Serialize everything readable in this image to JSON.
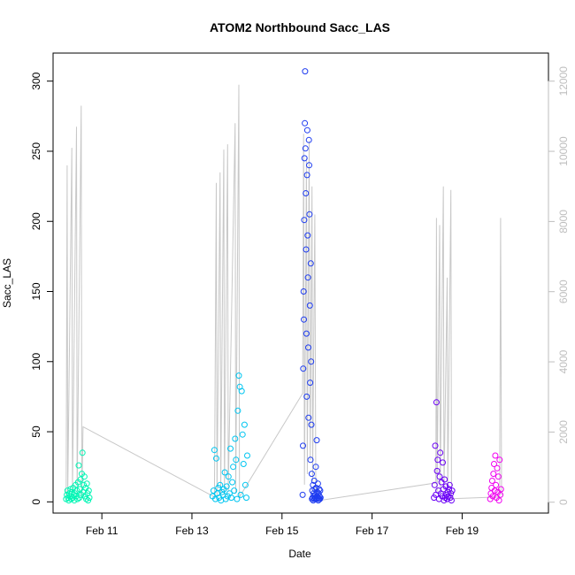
{
  "chart_data": {
    "type": "scatter",
    "title": "ATOM2 Northbound Sacc_LAS",
    "xlabel": "Date",
    "ylabel": "Sacc_LAS",
    "x_axis": {
      "type": "date",
      "range": [
        "2010-02-09T22:00",
        "2010-02-20T22:00"
      ],
      "ticks": [
        {
          "value": "2010-02-11",
          "label": "Feb 11"
        },
        {
          "value": "2010-02-13",
          "label": "Feb 13"
        },
        {
          "value": "2010-02-15",
          "label": "Feb 15"
        },
        {
          "value": "2010-02-17",
          "label": "Feb 17"
        },
        {
          "value": "2010-02-19",
          "label": "Feb 19"
        }
      ]
    },
    "y_axis": {
      "range": [
        -8,
        320
      ],
      "ticks": [
        {
          "value": 0,
          "label": "0"
        },
        {
          "value": 50,
          "label": "50"
        },
        {
          "value": 100,
          "label": "100"
        },
        {
          "value": 150,
          "label": "150"
        },
        {
          "value": 200,
          "label": "200"
        },
        {
          "value": 250,
          "label": "250"
        },
        {
          "value": 300,
          "label": "300"
        }
      ]
    },
    "y2_axis": {
      "range": [
        -310,
        12800
      ],
      "color": "#bebebe",
      "ticks": [
        {
          "value": 0,
          "label": "0"
        },
        {
          "value": 2000,
          "label": "2000"
        },
        {
          "value": 4000,
          "label": "4000"
        },
        {
          "value": 6000,
          "label": "6000"
        },
        {
          "value": 8000,
          "label": "8000"
        },
        {
          "value": 10000,
          "label": "10000"
        },
        {
          "value": 12000,
          "label": "12000"
        }
      ]
    },
    "grid": false,
    "legend": "none",
    "series": [
      {
        "color": "#00f5b4",
        "points": [
          [
            "2010-02-10T05:00",
            2
          ],
          [
            "2010-02-10T05:20",
            5
          ],
          [
            "2010-02-10T05:40",
            8
          ],
          [
            "2010-02-10T06:00",
            3
          ],
          [
            "2010-02-10T06:20",
            1
          ],
          [
            "2010-02-10T06:40",
            6
          ],
          [
            "2010-02-10T07:00",
            4
          ],
          [
            "2010-02-10T07:20",
            9
          ],
          [
            "2010-02-10T07:40",
            2
          ],
          [
            "2010-02-10T08:00",
            7
          ],
          [
            "2010-02-10T08:20",
            3
          ],
          [
            "2010-02-10T08:40",
            10
          ],
          [
            "2010-02-10T09:00",
            5
          ],
          [
            "2010-02-10T09:20",
            1
          ],
          [
            "2010-02-10T09:40",
            6
          ],
          [
            "2010-02-10T10:00",
            12
          ],
          [
            "2010-02-10T10:20",
            4
          ],
          [
            "2010-02-10T10:40",
            8
          ],
          [
            "2010-02-10T11:00",
            2
          ],
          [
            "2010-02-10T11:20",
            14
          ],
          [
            "2010-02-10T11:40",
            26
          ],
          [
            "2010-02-10T12:00",
            3
          ],
          [
            "2010-02-10T12:20",
            9
          ],
          [
            "2010-02-10T12:40",
            16
          ],
          [
            "2010-02-10T13:00",
            5
          ],
          [
            "2010-02-10T13:20",
            20
          ],
          [
            "2010-02-10T13:40",
            35
          ],
          [
            "2010-02-10T14:00",
            7
          ],
          [
            "2010-02-10T14:20",
            12
          ],
          [
            "2010-02-10T14:40",
            18
          ],
          [
            "2010-02-10T15:00",
            4
          ],
          [
            "2010-02-10T15:20",
            10
          ],
          [
            "2010-02-10T15:40",
            2
          ],
          [
            "2010-02-10T16:00",
            13
          ],
          [
            "2010-02-10T16:20",
            6
          ],
          [
            "2010-02-10T16:40",
            1
          ],
          [
            "2010-02-10T17:00",
            8
          ],
          [
            "2010-02-10T17:20",
            3
          ]
        ]
      },
      {
        "color": "#00c5f0",
        "points": [
          [
            "2010-02-13T11:00",
            4
          ],
          [
            "2010-02-13T11:30",
            8
          ],
          [
            "2010-02-13T12:00",
            37
          ],
          [
            "2010-02-13T12:30",
            2
          ],
          [
            "2010-02-13T13:00",
            31
          ],
          [
            "2010-02-13T13:30",
            6
          ],
          [
            "2010-02-13T14:00",
            10
          ],
          [
            "2010-02-13T14:30",
            3
          ],
          [
            "2010-02-13T15:00",
            12
          ],
          [
            "2010-02-13T15:30",
            1
          ],
          [
            "2010-02-13T16:00",
            7
          ],
          [
            "2010-02-13T16:30",
            5
          ],
          [
            "2010-02-13T17:00",
            9
          ],
          [
            "2010-02-13T17:30",
            21
          ],
          [
            "2010-02-13T18:00",
            2
          ],
          [
            "2010-02-13T18:30",
            11
          ],
          [
            "2010-02-13T19:00",
            4
          ],
          [
            "2010-02-13T19:30",
            18
          ],
          [
            "2010-02-13T20:00",
            6
          ],
          [
            "2010-02-13T20:30",
            38
          ],
          [
            "2010-02-13T21:00",
            3
          ],
          [
            "2010-02-13T21:30",
            14
          ],
          [
            "2010-02-13T22:00",
            25
          ],
          [
            "2010-02-13T22:30",
            8
          ],
          [
            "2010-02-13T23:00",
            45
          ],
          [
            "2010-02-13T23:30",
            30
          ],
          [
            "2010-02-14T00:00",
            2
          ],
          [
            "2010-02-14T00:30",
            65
          ],
          [
            "2010-02-14T01:00",
            90
          ],
          [
            "2010-02-14T01:30",
            82
          ],
          [
            "2010-02-14T02:00",
            5
          ],
          [
            "2010-02-14T02:30",
            79
          ],
          [
            "2010-02-14T03:00",
            48
          ],
          [
            "2010-02-14T03:30",
            27
          ],
          [
            "2010-02-14T04:00",
            55
          ],
          [
            "2010-02-14T04:30",
            12
          ],
          [
            "2010-02-14T05:00",
            3
          ],
          [
            "2010-02-14T05:30",
            33
          ]
        ]
      },
      {
        "color": "#1e3cf0",
        "points": [
          [
            "2010-02-15T11:00",
            5
          ],
          [
            "2010-02-15T11:10",
            40
          ],
          [
            "2010-02-15T11:20",
            95
          ],
          [
            "2010-02-15T11:30",
            150
          ],
          [
            "2010-02-15T11:40",
            130
          ],
          [
            "2010-02-15T11:50",
            201
          ],
          [
            "2010-02-15T12:00",
            245
          ],
          [
            "2010-02-15T12:10",
            270
          ],
          [
            "2010-02-15T12:20",
            307
          ],
          [
            "2010-02-15T12:30",
            252
          ],
          [
            "2010-02-15T12:40",
            220
          ],
          [
            "2010-02-15T12:50",
            180
          ],
          [
            "2010-02-15T13:00",
            120
          ],
          [
            "2010-02-15T13:10",
            75
          ],
          [
            "2010-02-15T13:20",
            233
          ],
          [
            "2010-02-15T13:30",
            265
          ],
          [
            "2010-02-15T13:40",
            190
          ],
          [
            "2010-02-15T13:50",
            160
          ],
          [
            "2010-02-15T14:00",
            110
          ],
          [
            "2010-02-15T14:10",
            60
          ],
          [
            "2010-02-15T14:20",
            258
          ],
          [
            "2010-02-15T14:30",
            240
          ],
          [
            "2010-02-15T14:40",
            205
          ],
          [
            "2010-02-15T14:50",
            140
          ],
          [
            "2010-02-15T15:00",
            85
          ],
          [
            "2010-02-15T15:10",
            30
          ],
          [
            "2010-02-15T15:20",
            170
          ],
          [
            "2010-02-15T15:30",
            100
          ],
          [
            "2010-02-15T15:40",
            55
          ],
          [
            "2010-02-15T15:50",
            20
          ],
          [
            "2010-02-15T16:00",
            2
          ],
          [
            "2010-02-15T16:10",
            8
          ],
          [
            "2010-02-15T16:20",
            3
          ],
          [
            "2010-02-15T16:30",
            12
          ],
          [
            "2010-02-15T16:40",
            1
          ],
          [
            "2010-02-15T16:50",
            6
          ],
          [
            "2010-02-15T17:00",
            4
          ],
          [
            "2010-02-15T17:10",
            15
          ],
          [
            "2010-02-15T17:20",
            2
          ],
          [
            "2010-02-15T17:30",
            9
          ],
          [
            "2010-02-15T17:40",
            3
          ],
          [
            "2010-02-15T17:50",
            5
          ],
          [
            "2010-02-15T18:00",
            25
          ],
          [
            "2010-02-15T18:10",
            10
          ],
          [
            "2010-02-15T18:20",
            2
          ],
          [
            "2010-02-15T18:30",
            44
          ],
          [
            "2010-02-15T18:40",
            4
          ],
          [
            "2010-02-15T18:50",
            7
          ],
          [
            "2010-02-15T19:00",
            3
          ],
          [
            "2010-02-15T19:10",
            13
          ],
          [
            "2010-02-15T19:20",
            1
          ],
          [
            "2010-02-15T19:30",
            6
          ],
          [
            "2010-02-15T19:40",
            2
          ],
          [
            "2010-02-15T19:50",
            9
          ],
          [
            "2010-02-15T20:00",
            4
          ],
          [
            "2010-02-15T20:10",
            2
          ],
          [
            "2010-02-15T20:20",
            8
          ],
          [
            "2010-02-15T20:30",
            3
          ]
        ]
      },
      {
        "color": "#6a00f5",
        "points": [
          [
            "2010-02-18T09:00",
            3
          ],
          [
            "2010-02-18T09:20",
            12
          ],
          [
            "2010-02-18T09:40",
            40
          ],
          [
            "2010-02-18T10:00",
            5
          ],
          [
            "2010-02-18T10:20",
            71
          ],
          [
            "2010-02-18T10:40",
            22
          ],
          [
            "2010-02-18T11:00",
            30
          ],
          [
            "2010-02-18T11:20",
            8
          ],
          [
            "2010-02-18T11:40",
            2
          ],
          [
            "2010-02-18T12:00",
            18
          ],
          [
            "2010-02-18T12:20",
            35
          ],
          [
            "2010-02-18T12:40",
            6
          ],
          [
            "2010-02-18T13:00",
            14
          ],
          [
            "2010-02-18T13:20",
            4
          ],
          [
            "2010-02-18T13:40",
            28
          ],
          [
            "2010-02-18T14:00",
            9
          ],
          [
            "2010-02-18T14:20",
            1
          ],
          [
            "2010-02-18T14:40",
            16
          ],
          [
            "2010-02-18T15:00",
            3
          ],
          [
            "2010-02-18T15:20",
            11
          ],
          [
            "2010-02-18T15:40",
            5
          ],
          [
            "2010-02-18T16:00",
            2
          ],
          [
            "2010-02-18T16:20",
            7
          ],
          [
            "2010-02-18T16:40",
            4
          ],
          [
            "2010-02-18T17:00",
            9
          ],
          [
            "2010-02-18T17:20",
            12
          ],
          [
            "2010-02-18T17:40",
            3
          ],
          [
            "2010-02-18T18:00",
            6
          ],
          [
            "2010-02-18T18:20",
            1
          ],
          [
            "2010-02-18T18:40",
            8
          ]
        ]
      },
      {
        "color": "#f000f0",
        "points": [
          [
            "2010-02-19T15:00",
            2
          ],
          [
            "2010-02-19T15:20",
            6
          ],
          [
            "2010-02-19T15:40",
            10
          ],
          [
            "2010-02-19T16:00",
            15
          ],
          [
            "2010-02-19T16:20",
            4
          ],
          [
            "2010-02-19T16:40",
            20
          ],
          [
            "2010-02-19T17:00",
            27
          ],
          [
            "2010-02-19T17:20",
            8
          ],
          [
            "2010-02-19T17:40",
            33
          ],
          [
            "2010-02-19T18:00",
            12
          ],
          [
            "2010-02-19T18:20",
            3
          ],
          [
            "2010-02-19T18:40",
            24
          ],
          [
            "2010-02-19T19:00",
            7
          ],
          [
            "2010-02-19T19:20",
            18
          ],
          [
            "2010-02-19T19:40",
            1
          ],
          [
            "2010-02-19T20:00",
            30
          ],
          [
            "2010-02-19T20:20",
            5
          ],
          [
            "2010-02-19T20:40",
            9
          ]
        ]
      }
    ],
    "secondary_line": {
      "axis": "y2",
      "color": "#c8c8c8",
      "points": [
        [
          "2010-02-10T05:00",
          200
        ],
        [
          "2010-02-10T05:30",
          9600
        ],
        [
          "2010-02-10T05:50",
          300
        ],
        [
          "2010-02-10T08:00",
          10100
        ],
        [
          "2010-02-10T08:20",
          250
        ],
        [
          "2010-02-10T10:30",
          10700
        ],
        [
          "2010-02-10T10:50",
          200
        ],
        [
          "2010-02-10T13:00",
          11300
        ],
        [
          "2010-02-10T13:20",
          100
        ],
        [
          "2010-02-10T14:00",
          2150
        ],
        [
          "2010-02-13T12:00",
          150
        ],
        [
          "2010-02-13T13:00",
          9100
        ],
        [
          "2010-02-13T13:20",
          200
        ],
        [
          "2010-02-13T15:00",
          9400
        ],
        [
          "2010-02-13T15:20",
          250
        ],
        [
          "2010-02-13T17:00",
          10050
        ],
        [
          "2010-02-13T17:20",
          200
        ],
        [
          "2010-02-13T19:00",
          10200
        ],
        [
          "2010-02-13T19:20",
          300
        ],
        [
          "2010-02-13T23:00",
          10800
        ],
        [
          "2010-02-13T23:20",
          250
        ],
        [
          "2010-02-14T01:00",
          11900
        ],
        [
          "2010-02-14T01:20",
          150
        ],
        [
          "2010-02-15T11:00",
          3100
        ],
        [
          "2010-02-15T11:30",
          10500
        ],
        [
          "2010-02-15T12:00",
          500
        ],
        [
          "2010-02-15T13:00",
          9800
        ],
        [
          "2010-02-15T13:30",
          800
        ],
        [
          "2010-02-15T14:30",
          10300
        ],
        [
          "2010-02-15T15:00",
          1200
        ],
        [
          "2010-02-15T16:00",
          9000
        ],
        [
          "2010-02-15T16:20",
          600
        ],
        [
          "2010-02-15T17:30",
          8200
        ],
        [
          "2010-02-15T18:00",
          300
        ],
        [
          "2010-02-15T20:00",
          50
        ],
        [
          "2010-02-18T10:00",
          550
        ],
        [
          "2010-02-18T10:20",
          8100
        ],
        [
          "2010-02-18T10:40",
          300
        ],
        [
          "2010-02-18T12:00",
          7900
        ],
        [
          "2010-02-18T12:20",
          400
        ],
        [
          "2010-02-18T14:00",
          9000
        ],
        [
          "2010-02-18T14:20",
          350
        ],
        [
          "2010-02-18T16:00",
          6400
        ],
        [
          "2010-02-18T16:20",
          300
        ],
        [
          "2010-02-18T18:00",
          8900
        ],
        [
          "2010-02-18T18:20",
          100
        ],
        [
          "2010-02-19T20:00",
          150
        ],
        [
          "2010-02-19T20:30",
          8100
        ],
        [
          "2010-02-19T21:00",
          200
        ]
      ]
    }
  }
}
